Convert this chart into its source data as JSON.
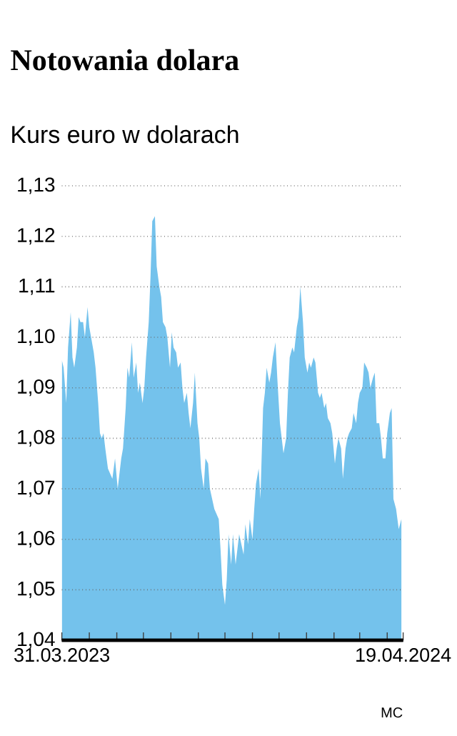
{
  "chart_data": {
    "type": "area",
    "title": "Notowania dolara",
    "subtitle": "Kurs euro w dolarach",
    "annotations": [
      "MC"
    ],
    "color": "#74c2ec",
    "grid": "y",
    "xlim": [
      "2023-03-31",
      "2024-04-19"
    ],
    "xticks": [
      {
        "value": "2023-03-31",
        "label": "31.03.2023"
      },
      {
        "value": "2023-05-01",
        "label": null
      },
      {
        "value": "2023-06-01",
        "label": null
      },
      {
        "value": "2023-07-01",
        "label": null
      },
      {
        "value": "2023-08-01",
        "label": null
      },
      {
        "value": "2023-09-01",
        "label": null
      },
      {
        "value": "2023-10-01",
        "label": null
      },
      {
        "value": "2023-11-01",
        "label": null
      },
      {
        "value": "2023-12-01",
        "label": null
      },
      {
        "value": "2024-01-01",
        "label": null
      },
      {
        "value": "2024-02-01",
        "label": null
      },
      {
        "value": "2024-03-01",
        "label": null
      },
      {
        "value": "2024-04-01",
        "label": null
      },
      {
        "value": "2024-04-19",
        "label": "19.04.2024"
      }
    ],
    "ylim": [
      1.04,
      1.13
    ],
    "yticks": [
      {
        "value": 1.04,
        "label": "1,04"
      },
      {
        "value": 1.05,
        "label": "1,05"
      },
      {
        "value": 1.06,
        "label": "1,06"
      },
      {
        "value": 1.07,
        "label": "1,07"
      },
      {
        "value": 1.08,
        "label": "1,08"
      },
      {
        "value": 1.09,
        "label": "1,09"
      },
      {
        "value": 1.1,
        "label": "1,10"
      },
      {
        "value": 1.11,
        "label": "1,11"
      },
      {
        "value": 1.12,
        "label": "1,12"
      },
      {
        "value": 1.13,
        "label": "1,13"
      }
    ],
    "x": [
      "2023-03-31",
      "2023-04-02",
      "2023-04-05",
      "2023-04-07",
      "2023-04-10",
      "2023-04-12",
      "2023-04-14",
      "2023-04-17",
      "2023-04-19",
      "2023-04-21",
      "2023-04-24",
      "2023-04-26",
      "2023-04-29",
      "2023-05-01",
      "2023-05-03",
      "2023-05-06",
      "2023-05-08",
      "2023-05-11",
      "2023-05-13",
      "2023-05-15",
      "2023-05-17",
      "2023-05-19",
      "2023-05-22",
      "2023-05-27",
      "2023-05-30",
      "2023-06-02",
      "2023-06-06",
      "2023-06-08",
      "2023-06-11",
      "2023-06-13",
      "2023-06-15",
      "2023-06-18",
      "2023-06-20",
      "2023-06-23",
      "2023-06-25",
      "2023-06-27",
      "2023-06-30",
      "2023-07-02",
      "2023-07-04",
      "2023-07-07",
      "2023-07-09",
      "2023-07-11",
      "2023-07-14",
      "2023-07-16",
      "2023-07-19",
      "2023-07-21",
      "2023-07-23",
      "2023-07-26",
      "2023-07-28",
      "2023-07-31",
      "2023-08-02",
      "2023-08-04",
      "2023-08-07",
      "2023-08-09",
      "2023-08-12",
      "2023-08-14",
      "2023-08-16",
      "2023-08-19",
      "2023-08-21",
      "2023-08-23",
      "2023-08-26",
      "2023-08-28",
      "2023-08-31",
      "2023-09-02",
      "2023-09-04",
      "2023-09-07",
      "2023-09-09",
      "2023-09-12",
      "2023-09-14",
      "2023-09-19",
      "2023-09-24",
      "2023-09-26",
      "2023-09-28",
      "2023-10-01",
      "2023-10-03",
      "2023-10-05",
      "2023-10-08",
      "2023-10-10",
      "2023-10-13",
      "2023-10-17",
      "2023-10-22",
      "2023-10-24",
      "2023-10-27",
      "2023-10-29",
      "2023-11-01",
      "2023-11-03",
      "2023-11-05",
      "2023-11-08",
      "2023-11-10",
      "2023-11-13",
      "2023-11-15",
      "2023-11-17",
      "2023-11-20",
      "2023-11-22",
      "2023-11-24",
      "2023-11-27",
      "2023-11-29",
      "2023-12-02",
      "2023-12-04",
      "2023-12-06",
      "2023-12-09",
      "2023-12-11",
      "2023-12-13",
      "2023-12-16",
      "2023-12-18",
      "2023-12-21",
      "2023-12-23",
      "2023-12-25",
      "2023-12-28",
      "2023-12-30",
      "2024-01-02",
      "2024-01-04",
      "2024-01-06",
      "2024-01-09",
      "2024-01-11",
      "2024-01-14",
      "2024-01-16",
      "2024-01-18",
      "2024-01-21",
      "2024-01-23",
      "2024-01-25",
      "2024-01-28",
      "2024-01-30",
      "2024-02-02",
      "2024-02-04",
      "2024-02-06",
      "2024-02-09",
      "2024-02-11",
      "2024-02-14",
      "2024-02-16",
      "2024-02-18",
      "2024-02-21",
      "2024-02-23",
      "2024-02-26",
      "2024-02-28",
      "2024-03-01",
      "2024-03-04",
      "2024-03-06",
      "2024-03-09",
      "2024-03-11",
      "2024-03-13",
      "2024-03-16",
      "2024-03-18",
      "2024-03-20",
      "2024-03-23",
      "2024-03-25",
      "2024-03-27",
      "2024-03-30",
      "2024-04-01",
      "2024-04-04",
      "2024-04-06",
      "2024-04-08",
      "2024-04-11",
      "2024-04-14",
      "2024-04-17"
    ],
    "values": [
      1.0955,
      1.094,
      1.087,
      1.098,
      1.105,
      1.096,
      1.094,
      1.098,
      1.104,
      1.103,
      1.103,
      1.1,
      1.106,
      1.102,
      1.1,
      1.097,
      1.094,
      1.087,
      1.081,
      1.08,
      1.081,
      1.078,
      1.074,
      1.072,
      1.076,
      1.07,
      1.076,
      1.078,
      1.086,
      1.094,
      1.092,
      1.099,
      1.092,
      1.095,
      1.089,
      1.091,
      1.087,
      1.09,
      1.096,
      1.103,
      1.112,
      1.123,
      1.124,
      1.114,
      1.11,
      1.108,
      1.103,
      1.102,
      1.1,
      1.094,
      1.101,
      1.098,
      1.097,
      1.094,
      1.095,
      1.09,
      1.087,
      1.089,
      1.085,
      1.082,
      1.087,
      1.093,
      1.083,
      1.08,
      1.074,
      1.07,
      1.076,
      1.075,
      1.07,
      1.066,
      1.064,
      1.058,
      1.051,
      1.047,
      1.052,
      1.061,
      1.055,
      1.061,
      1.055,
      1.061,
      1.057,
      1.063,
      1.059,
      1.064,
      1.06,
      1.066,
      1.071,
      1.074,
      1.068,
      1.086,
      1.089,
      1.094,
      1.091,
      1.093,
      1.096,
      1.099,
      1.092,
      1.083,
      1.08,
      1.077,
      1.08,
      1.089,
      1.096,
      1.098,
      1.097,
      1.102,
      1.104,
      1.11,
      1.103,
      1.096,
      1.093,
      1.095,
      1.094,
      1.096,
      1.095,
      1.089,
      1.088,
      1.089,
      1.086,
      1.087,
      1.084,
      1.083,
      1.081,
      1.075,
      1.078,
      1.08,
      1.078,
      1.072,
      1.078,
      1.08,
      1.081,
      1.082,
      1.085,
      1.083,
      1.087,
      1.089,
      1.09,
      1.095,
      1.094,
      1.093,
      1.09,
      1.092,
      1.093,
      1.083,
      1.083,
      1.08,
      1.076,
      1.076,
      1.081,
      1.085,
      1.086,
      1.068,
      1.066,
      1.062,
      1.064
    ]
  }
}
